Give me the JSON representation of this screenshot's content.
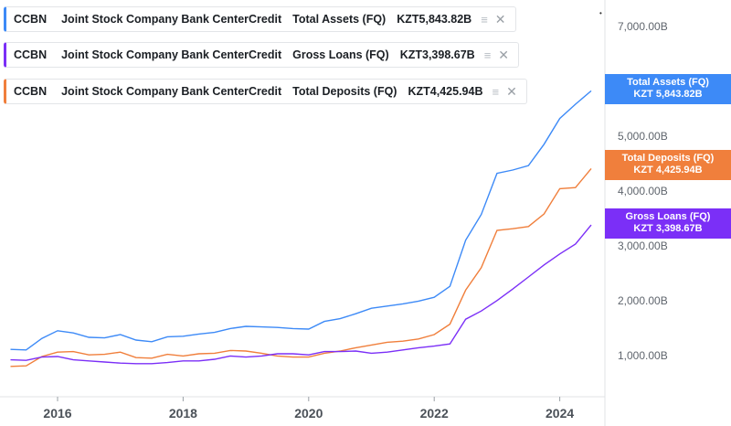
{
  "legend": [
    {
      "ticker": "CCBN",
      "company": "Joint Stock Company Bank CenterCredit",
      "metric": "Total Assets (FQ)",
      "value": "KZT5,843.82B",
      "color": "#3d8af7"
    },
    {
      "ticker": "CCBN",
      "company": "Joint Stock Company Bank CenterCredit",
      "metric": "Gross Loans (FQ)",
      "value": "KZT3,398.67B",
      "color": "#7b2ff7"
    },
    {
      "ticker": "CCBN",
      "company": "Joint Stock Company Bank CenterCredit",
      "metric": "Total Deposits (FQ)",
      "value": "KZT4,425.94B",
      "color": "#f07f3c"
    }
  ],
  "tags": [
    {
      "label": "Total Assets (FQ)",
      "value": "KZT 5,843.82B",
      "color": "#3d8af7"
    },
    {
      "label": "Total Deposits (FQ)",
      "value": "KZT 4,425.94B",
      "color": "#f07f3c"
    },
    {
      "label": "Gross Loans (FQ)",
      "value": "KZT 3,398.67B",
      "color": "#7b2ff7"
    }
  ],
  "chart_data": {
    "type": "line",
    "x_tick_labels": [
      "2016",
      "2018",
      "2020",
      "2022",
      "2024"
    ],
    "y_tick_labels": [
      "1,000.00B",
      "2,000.00B",
      "3,000.00B",
      "4,000.00B",
      "5,000.00B",
      "7,000.00B"
    ],
    "ylim": [
      0,
      7600
    ],
    "xlim": [
      2015.2,
      2024.95
    ],
    "grid": false,
    "series": [
      {
        "name": "Total Assets (FQ)",
        "color": "#3d8af7",
        "x": [
          2015.25,
          2015.5,
          2015.75,
          2016.0,
          2016.25,
          2016.5,
          2016.75,
          2017.0,
          2017.25,
          2017.5,
          2017.75,
          2018.0,
          2018.25,
          2018.5,
          2018.75,
          2019.0,
          2019.25,
          2019.5,
          2019.75,
          2020.0,
          2020.25,
          2020.5,
          2020.75,
          2021.0,
          2021.25,
          2021.5,
          2021.75,
          2022.0,
          2022.25,
          2022.5,
          2022.75,
          2023.0,
          2023.25,
          2023.5,
          2023.75,
          2024.0,
          2024.25,
          2024.5
        ],
        "values": [
          1130,
          1120,
          1330,
          1470,
          1430,
          1350,
          1340,
          1400,
          1300,
          1270,
          1360,
          1370,
          1410,
          1440,
          1510,
          1550,
          1540,
          1530,
          1510,
          1500,
          1640,
          1690,
          1780,
          1880,
          1920,
          1960,
          2010,
          2080,
          2280,
          3120,
          3590,
          4340,
          4400,
          4480,
          4870,
          5340,
          5600,
          5843.82
        ]
      },
      {
        "name": "Total Deposits (FQ)",
        "color": "#f07f3c",
        "x": [
          2015.25,
          2015.5,
          2015.75,
          2016.0,
          2016.25,
          2016.5,
          2016.75,
          2017.0,
          2017.25,
          2017.5,
          2017.75,
          2018.0,
          2018.25,
          2018.5,
          2018.75,
          2019.0,
          2019.25,
          2019.5,
          2019.75,
          2020.0,
          2020.25,
          2020.5,
          2020.75,
          2021.0,
          2021.25,
          2021.5,
          2021.75,
          2022.0,
          2022.25,
          2022.5,
          2022.75,
          2023.0,
          2023.25,
          2023.5,
          2023.75,
          2024.0,
          2024.25,
          2024.5
        ],
        "values": [
          820,
          830,
          1000,
          1080,
          1090,
          1030,
          1040,
          1080,
          980,
          970,
          1040,
          1010,
          1050,
          1060,
          1110,
          1100,
          1060,
          1010,
          990,
          990,
          1060,
          1100,
          1160,
          1210,
          1260,
          1280,
          1320,
          1400,
          1590,
          2210,
          2620,
          3300,
          3330,
          3370,
          3600,
          4060,
          4080,
          4425.94
        ]
      },
      {
        "name": "Gross Loans (FQ)",
        "color": "#7b2ff7",
        "x": [
          2015.25,
          2015.5,
          2015.75,
          2016.0,
          2016.25,
          2016.5,
          2016.75,
          2017.0,
          2017.25,
          2017.5,
          2017.75,
          2018.0,
          2018.25,
          2018.5,
          2018.75,
          2019.0,
          2019.25,
          2019.5,
          2019.75,
          2020.0,
          2020.25,
          2020.5,
          2020.75,
          2021.0,
          2021.25,
          2021.5,
          2021.75,
          2022.0,
          2022.25,
          2022.5,
          2022.75,
          2023.0,
          2023.25,
          2023.5,
          2023.75,
          2024.0,
          2024.25,
          2024.5
        ],
        "values": [
          940,
          930,
          990,
          1000,
          940,
          920,
          900,
          880,
          870,
          870,
          890,
          920,
          920,
          950,
          1010,
          990,
          1010,
          1050,
          1050,
          1030,
          1090,
          1090,
          1100,
          1060,
          1080,
          1120,
          1160,
          1190,
          1230,
          1680,
          1830,
          2020,
          2230,
          2450,
          2670,
          2870,
          3050,
          3398.67
        ]
      }
    ]
  }
}
